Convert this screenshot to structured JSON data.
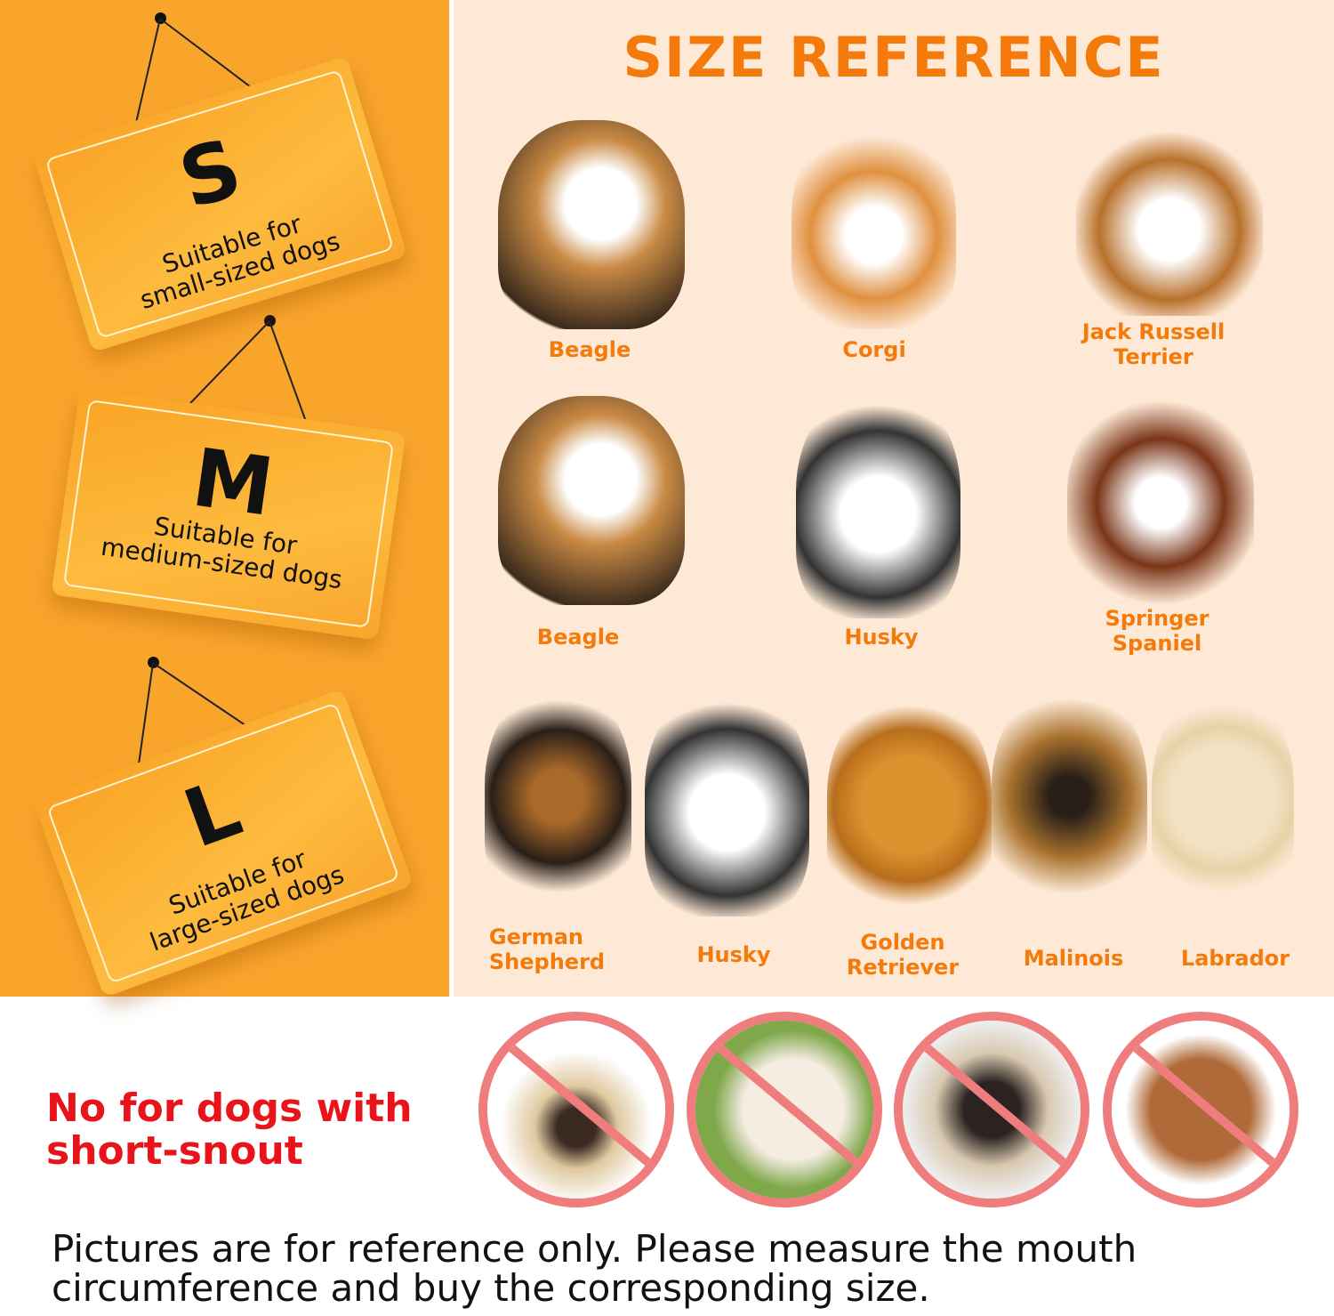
{
  "title": "SIZE REFERENCE",
  "sizes": [
    {
      "letter": "S",
      "line1": "Suitable for",
      "line2": "small-sized dogs"
    },
    {
      "letter": "M",
      "line1": "Suitable for",
      "line2": "medium-sized dogs"
    },
    {
      "letter": "L",
      "line1": "Suitable for",
      "line2": "large-sized dogs"
    }
  ],
  "dogs": {
    "small": [
      "Beagle",
      "Corgi",
      "Jack Russell\nTerrier"
    ],
    "medium": [
      "Beagle",
      "Husky",
      "Springer\nSpaniel"
    ],
    "large": [
      "German\nShepherd",
      "Husky",
      "Golden\nRetriever",
      "Malinois",
      "Labrador"
    ]
  },
  "warning": {
    "line1": "No for dogs with",
    "line2": "short-snout"
  },
  "excluded_icons": [
    "no-pug-icon",
    "no-poodle-puppy-icon",
    "no-pug-icon",
    "no-poodle-icon"
  ],
  "note": {
    "line1": "Pictures are for reference only. Please measure the mouth",
    "line2": "circumference and buy the corresponding size."
  },
  "colors": {
    "accent": "#f47a0b",
    "panel": "#f9a52c",
    "background": "#fde9d6",
    "warning": "#e8141c",
    "prohibit": "#f07d7d"
  }
}
